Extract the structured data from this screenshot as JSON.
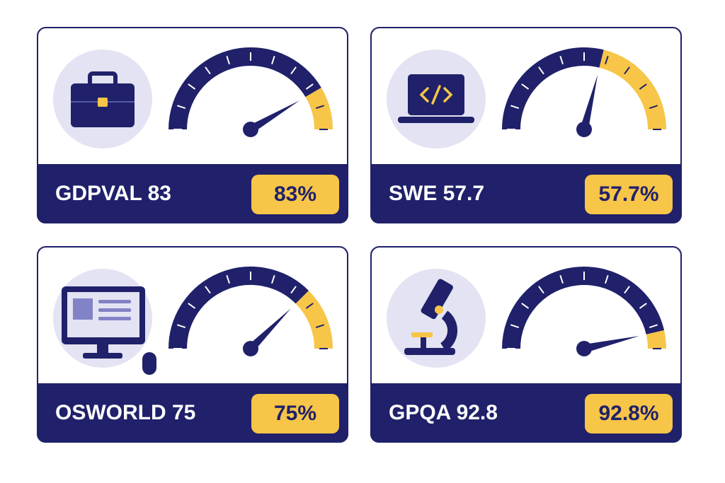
{
  "chart_data": [
    {
      "type": "gauge",
      "title": "GDPVAL 83",
      "values": [
        83
      ],
      "value_labels": [
        "83%"
      ],
      "ylim": [
        0,
        100
      ],
      "yticks": [
        0,
        10,
        20,
        30,
        40,
        50,
        60,
        70,
        80,
        90,
        100
      ],
      "color": "#20216a",
      "highlight_color": "#f7c548"
    },
    {
      "type": "gauge",
      "title": "SWE 57.7",
      "values": [
        57.7
      ],
      "value_labels": [
        "57.7%"
      ],
      "ylim": [
        0,
        100
      ],
      "yticks": [
        0,
        10,
        20,
        30,
        40,
        50,
        60,
        70,
        80,
        90,
        100
      ],
      "color": "#20216a",
      "highlight_color": "#f7c548"
    },
    {
      "type": "gauge",
      "title": "OSWORLD 75",
      "values": [
        75
      ],
      "value_labels": [
        "75%"
      ],
      "ylim": [
        0,
        100
      ],
      "yticks": [
        0,
        10,
        20,
        30,
        40,
        50,
        60,
        70,
        80,
        90,
        100
      ],
      "color": "#20216a",
      "highlight_color": "#f7c548"
    },
    {
      "type": "gauge",
      "title": "GPQA 92.8",
      "values": [
        92.8
      ],
      "value_labels": [
        "92.8%"
      ],
      "ylim": [
        0,
        100
      ],
      "yticks": [
        0,
        10,
        20,
        30,
        40,
        50,
        60,
        70,
        80,
        90,
        100
      ],
      "color": "#20216a",
      "highlight_color": "#f7c548"
    }
  ]
}
